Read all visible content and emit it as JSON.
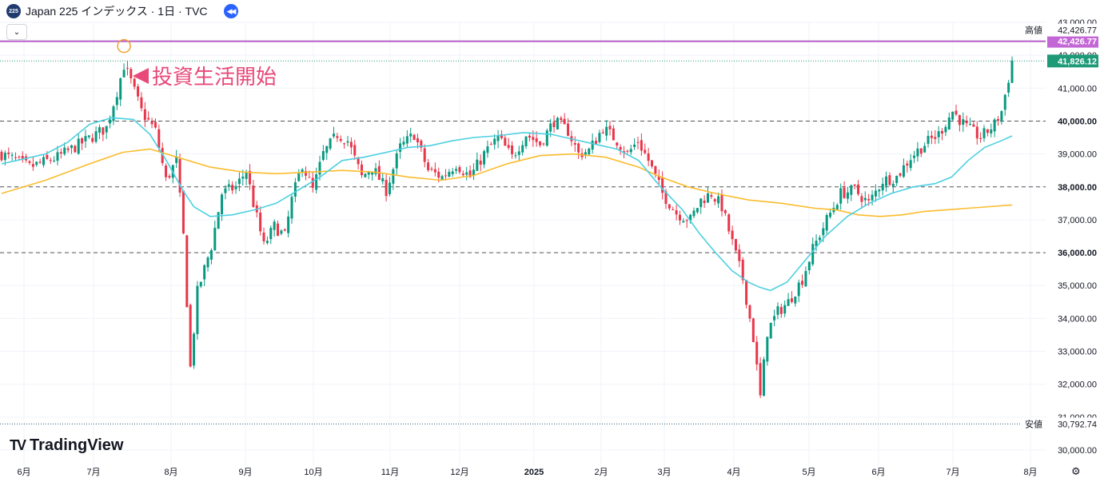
{
  "header": {
    "symbol_badge": "225",
    "title": "Japan 225 インデックス · 1日 · TVC",
    "icons": [
      "rewind-icon",
      "chevron-down-icon"
    ]
  },
  "annotation": {
    "text": "投資生活開始",
    "color": "#e8497a"
  },
  "logo": {
    "mark": "TV",
    "text": "TradingView"
  },
  "colors": {
    "up": "#089981",
    "down": "#e8364a",
    "ma_short": "#4dd0e1",
    "ma_long": "#fbbc2c",
    "high_line": "#b45cc8",
    "high_label_bg": "#c467d6",
    "last_label_bg": "#1e9a79"
  },
  "chart_data": {
    "type": "candlestick",
    "x_axis": {
      "ticks": [
        "6月",
        "7月",
        "8月",
        "9月",
        "10月",
        "11月",
        "12月",
        "2025",
        "2月",
        "3月",
        "4月",
        "5月",
        "6月",
        "7月",
        "8月"
      ]
    },
    "y_axis": {
      "range": [
        30000,
        43000
      ],
      "ticks": [
        "30,000.00",
        "31,000.00",
        "32,000.00",
        "33,000.00",
        "34,000.00",
        "35,000.00",
        "36,000.00",
        "37,000.00",
        "38,000.00",
        "39,000.00",
        "40,000.00",
        "41,000.00",
        "42,000.00",
        "43,000.00"
      ]
    },
    "horizontal_levels": [
      40000,
      38000,
      36000
    ],
    "high": {
      "label": "高値",
      "value": "42,426.77"
    },
    "low": {
      "label": "安値",
      "value": "30,792.74"
    },
    "high_line_value": "42,426.77",
    "last_price": "41,826.12",
    "level_labels": [
      "40,000.00",
      "38,000.00",
      "36,000.00"
    ],
    "ma_short_points": [
      [
        0,
        38700
      ],
      [
        0.04,
        38850
      ],
      [
        0.08,
        39000
      ],
      [
        0.12,
        39350
      ],
      [
        0.16,
        39900
      ],
      [
        0.2,
        40100
      ],
      [
        0.24,
        40050
      ],
      [
        0.27,
        39600
      ],
      [
        0.3,
        38800
      ],
      [
        0.33,
        37900
      ],
      [
        0.35,
        37400
      ],
      [
        0.38,
        37100
      ],
      [
        0.42,
        37150
      ],
      [
        0.46,
        37300
      ],
      [
        0.5,
        37500
      ],
      [
        0.54,
        37900
      ],
      [
        0.58,
        38300
      ],
      [
        0.62,
        38800
      ],
      [
        0.66,
        38900
      ],
      [
        0.7,
        39050
      ],
      [
        0.74,
        39200
      ],
      [
        0.78,
        39250
      ],
      [
        0.82,
        39400
      ],
      [
        0.86,
        39500
      ],
      [
        0.9,
        39550
      ],
      [
        0.95,
        39650
      ],
      [
        1.0,
        39600
      ],
      [
        1.04,
        39450
      ],
      [
        1.08,
        39300
      ],
      [
        1.12,
        39150
      ],
      [
        1.16,
        38800
      ],
      [
        1.2,
        38000
      ],
      [
        1.24,
        37300
      ],
      [
        1.27,
        36600
      ],
      [
        1.3,
        36000
      ],
      [
        1.33,
        35450
      ],
      [
        1.36,
        35100
      ],
      [
        1.38,
        34950
      ],
      [
        1.4,
        34850
      ],
      [
        1.43,
        35100
      ],
      [
        1.46,
        35700
      ],
      [
        1.5,
        36500
      ],
      [
        1.54,
        37100
      ],
      [
        1.58,
        37500
      ],
      [
        1.62,
        37800
      ],
      [
        1.66,
        38000
      ],
      [
        1.7,
        38100
      ],
      [
        1.73,
        38300
      ],
      [
        1.76,
        38800
      ],
      [
        1.79,
        39200
      ],
      [
        1.82,
        39400
      ],
      [
        1.84,
        39550
      ]
    ],
    "ma_long_points": [
      [
        0,
        37800
      ],
      [
        0.08,
        38200
      ],
      [
        0.16,
        38700
      ],
      [
        0.22,
        39050
      ],
      [
        0.27,
        39150
      ],
      [
        0.32,
        38900
      ],
      [
        0.38,
        38600
      ],
      [
        0.44,
        38450
      ],
      [
        0.5,
        38400
      ],
      [
        0.56,
        38450
      ],
      [
        0.62,
        38500
      ],
      [
        0.68,
        38450
      ],
      [
        0.74,
        38300
      ],
      [
        0.8,
        38200
      ],
      [
        0.86,
        38350
      ],
      [
        0.92,
        38700
      ],
      [
        0.98,
        38950
      ],
      [
        1.04,
        39000
      ],
      [
        1.1,
        38900
      ],
      [
        1.16,
        38600
      ],
      [
        1.2,
        38300
      ],
      [
        1.25,
        38000
      ],
      [
        1.3,
        37800
      ],
      [
        1.36,
        37600
      ],
      [
        1.42,
        37500
      ],
      [
        1.48,
        37350
      ],
      [
        1.52,
        37300
      ],
      [
        1.56,
        37150
      ],
      [
        1.6,
        37100
      ],
      [
        1.64,
        37150
      ],
      [
        1.68,
        37250
      ],
      [
        1.72,
        37300
      ],
      [
        1.76,
        37350
      ],
      [
        1.8,
        37400
      ],
      [
        1.84,
        37450
      ]
    ]
  }
}
